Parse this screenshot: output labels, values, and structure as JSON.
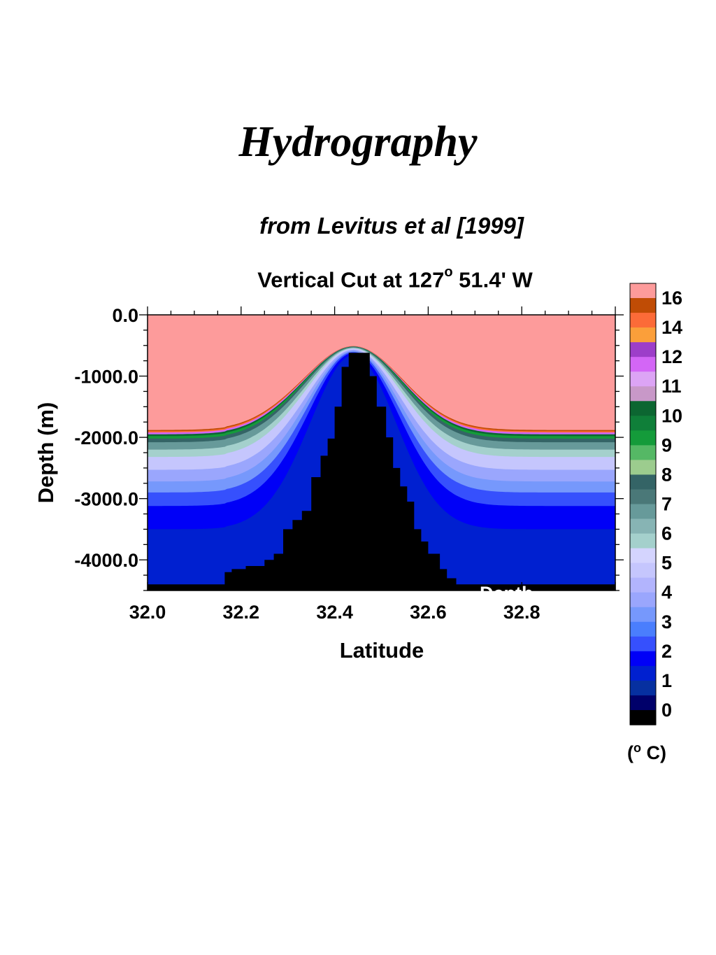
{
  "page": {
    "title": "Hydrography",
    "subtitle": "from Levitus et al [1999]",
    "plot_title_main": "Vertical Cut at 127",
    "plot_title_sup": "o",
    "plot_title_rest": " 51.4' W"
  },
  "chart_data": {
    "type": "heatmap",
    "title": "Vertical Cut at 127o 51.4' W",
    "xlabel": "Latitude",
    "ylabel": "Depth (m)",
    "xlim": [
      32.0,
      33.0
    ],
    "ylim": [
      -4500,
      0
    ],
    "x_ticks": [
      32.0,
      32.2,
      32.4,
      32.6,
      32.8
    ],
    "x_tick_labels": [
      "32.0",
      "32.2",
      "32.4",
      "32.6",
      "32.8"
    ],
    "y_ticks": [
      0,
      -1000,
      -2000,
      -3000,
      -4000
    ],
    "y_tick_labels": [
      "0.0",
      "-1000.0",
      "-2000.0",
      "-3000.0",
      "-4000.0"
    ],
    "colorbar": {
      "unit_prefix": "(",
      "unit_sup": "o",
      "unit_suffix": " C)",
      "labels": [
        "16",
        "14",
        "12",
        "11",
        "10",
        "9",
        "8",
        "7",
        "6",
        "5",
        "4",
        "3",
        "2",
        "1",
        "0"
      ],
      "colors": [
        "#fd9b9b",
        "#c04c05",
        "#fc6b38",
        "#fb9f3a",
        "#9d3ec9",
        "#d366f6",
        "#dca4f5",
        "#c898c8",
        "#0c6631",
        "#0f7f39",
        "#149b3a",
        "#55b865",
        "#9ccc8e",
        "#346466",
        "#4a7878",
        "#679a9a",
        "#87b4b4",
        "#a4d0cc",
        "#d4d4fe",
        "#c5c6fd",
        "#b2b4fd",
        "#9aa6fd",
        "#7698fc",
        "#4a7efd",
        "#3650fd",
        "#0000f7",
        "#0020d0",
        "#0630a0",
        "#00006a",
        "#000000"
      ]
    },
    "temperature_layers": [
      {
        "temp": 16,
        "color": "#fd9b9b",
        "top_depth_flank": 0
      },
      {
        "temp": 15,
        "color": "#c04c05",
        "top_depth_flank": -1880
      },
      {
        "temp": 14,
        "color": "#fc6b38",
        "top_depth_flank": -1900
      },
      {
        "temp": 12,
        "color": "#d366f6",
        "top_depth_flank": -1920
      },
      {
        "temp": 10,
        "color": "#0c6631",
        "top_depth_flank": -1950
      },
      {
        "temp": 9,
        "color": "#149b3a",
        "top_depth_flank": -1980
      },
      {
        "temp": 7,
        "color": "#346466",
        "top_depth_flank": -2020
      },
      {
        "temp": 6,
        "color": "#679a9a",
        "top_depth_flank": -2080
      },
      {
        "temp": 5,
        "color": "#a4d0cc",
        "top_depth_flank": -2200
      },
      {
        "temp": 4,
        "color": "#c5c6fd",
        "top_depth_flank": -2320
      },
      {
        "temp": 3,
        "color": "#9aa6fd",
        "top_depth_flank": -2530
      },
      {
        "temp": 2.5,
        "color": "#7698fc",
        "top_depth_flank": -2720
      },
      {
        "temp": 2,
        "color": "#3650fd",
        "top_depth_flank": -2900
      },
      {
        "temp": 1.5,
        "color": "#0000f7",
        "top_depth_flank": -3120
      },
      {
        "temp": 1,
        "color": "#0020d0",
        "top_depth_flank": -3500
      }
    ],
    "seamount_crest_depth": -620,
    "seamount_latitude": 32.44,
    "seafloor_depth": -4400,
    "partial_label": "Depth"
  }
}
